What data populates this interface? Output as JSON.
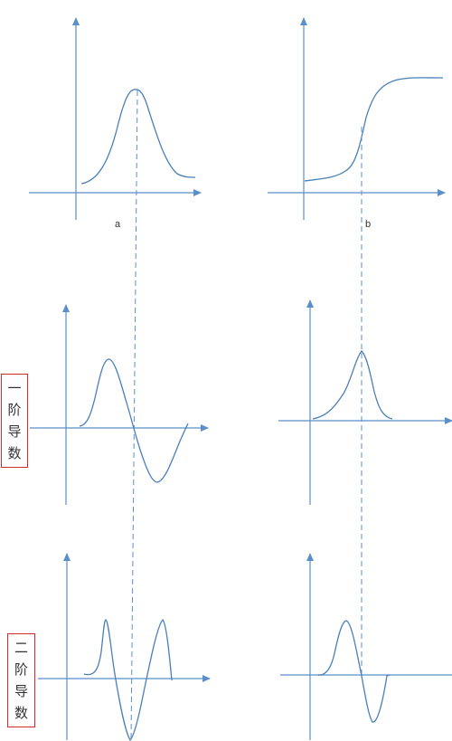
{
  "colors": {
    "axis": "#5b8fc9",
    "curve": "#4a7fb8",
    "dash": "#5b8fc9",
    "box": "#d22b2b"
  },
  "labels": {
    "panel_a": "a",
    "panel_b": "b",
    "first_derivative": [
      "一",
      "阶",
      "导",
      "数"
    ],
    "second_derivative": [
      "二",
      "阶",
      "导",
      "数"
    ]
  }
}
